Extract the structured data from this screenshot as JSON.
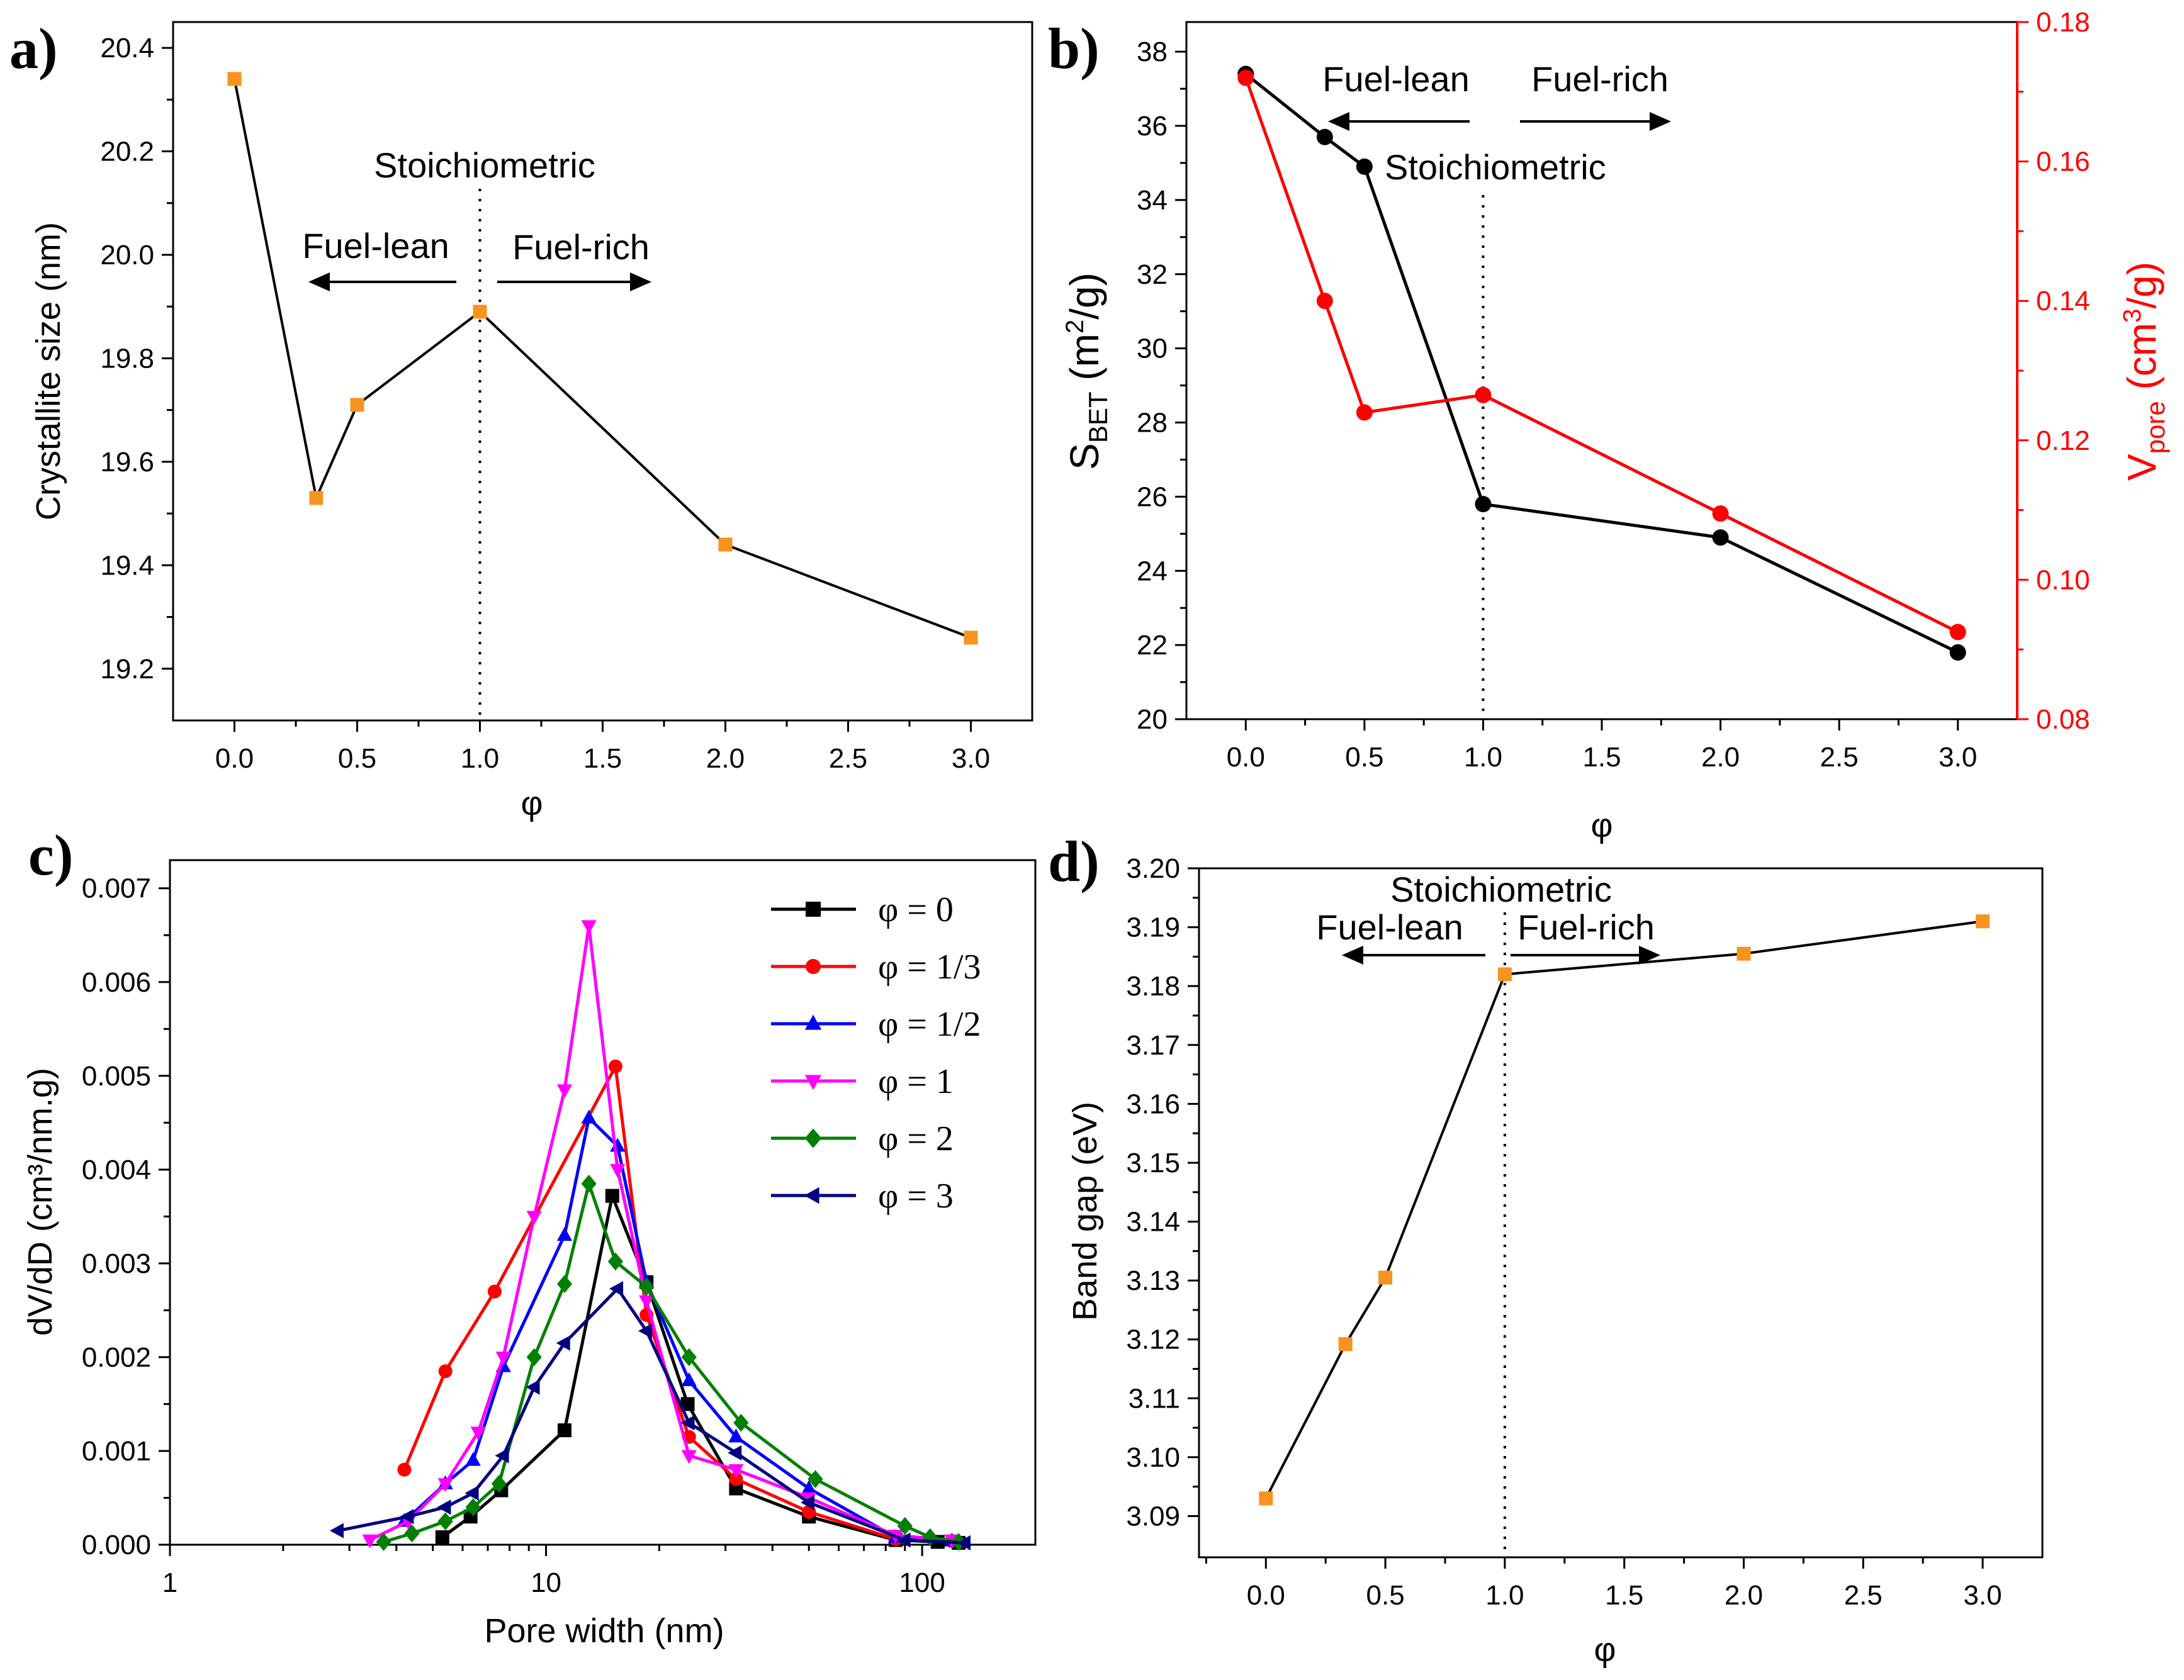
{
  "chart_data": [
    {
      "panel": "a)",
      "type": "line",
      "xlabel": "φ",
      "ylabel": "Crystallite size (nm)",
      "xlim": [
        -0.25,
        3.25
      ],
      "ylim": [
        19.1,
        20.45
      ],
      "xticks": [
        0.0,
        0.5,
        1.0,
        1.5,
        2.0,
        2.5,
        3.0
      ],
      "xtick_labels": [
        "0.0",
        "0.5",
        "1.0",
        "1.5",
        "2.0",
        "2.5",
        "3.0"
      ],
      "yticks": [
        19.2,
        19.4,
        19.6,
        19.8,
        20.0,
        20.2,
        20.4
      ],
      "ytick_labels": [
        "19.2",
        "19.4",
        "19.6",
        "19.8",
        "20.0",
        "20.2",
        "20.4"
      ],
      "series": [
        {
          "name": "Crystallite size",
          "x": [
            0,
            0.333,
            0.5,
            1,
            2,
            3
          ],
          "y": [
            20.34,
            19.53,
            19.71,
            19.89,
            19.44,
            19.26
          ],
          "color": "#000000",
          "marker_color": "#f7931e",
          "marker": "square"
        }
      ],
      "annotations": {
        "stoich": "Stoichiometric",
        "lean": "Fuel-lean",
        "rich": "Fuel-rich"
      },
      "vline_x": 1.0
    },
    {
      "panel": "b)",
      "type": "line",
      "xlabel": "φ",
      "ylabel_main": "S",
      "ylabel_sub": "BET",
      "ylabel_rest": " (m",
      "ylabel_sup": "2",
      "ylabel_end": "/g)",
      "y2label_main": "V",
      "y2label_sub": "pore",
      "y2label_rest": " (cm",
      "y2label_sup": "3",
      "y2label_end": "/g)",
      "xlim": [
        -0.25,
        3.25
      ],
      "ylim": [
        20,
        38.8
      ],
      "y2lim": [
        0.08,
        0.18
      ],
      "xticks": [
        0.0,
        0.5,
        1.0,
        1.5,
        2.0,
        2.5,
        3.0
      ],
      "xtick_labels": [
        "0.0",
        "0.5",
        "1.0",
        "1.5",
        "2.0",
        "2.5",
        "3.0"
      ],
      "yticks": [
        20,
        22,
        24,
        26,
        28,
        30,
        32,
        34,
        36,
        38
      ],
      "ytick_labels": [
        "20",
        "22",
        "24",
        "26",
        "28",
        "30",
        "32",
        "34",
        "36",
        "38"
      ],
      "y2ticks": [
        0.08,
        0.1,
        0.12,
        0.14,
        0.16,
        0.18
      ],
      "y2tick_labels": [
        "0.08",
        "0.10",
        "0.12",
        "0.14",
        "0.16",
        "0.18"
      ],
      "series": [
        {
          "name": "S_BET",
          "x": [
            0,
            0.333,
            0.5,
            1,
            2,
            3
          ],
          "y": [
            37.4,
            35.7,
            34.9,
            25.8,
            24.9,
            21.8
          ],
          "color": "#000000",
          "axis": "left"
        },
        {
          "name": "V_pore",
          "x": [
            0,
            0.333,
            0.5,
            1,
            2,
            3
          ],
          "y": [
            0.172,
            0.14,
            0.124,
            0.1265,
            0.1095,
            0.0925
          ],
          "color": "#ff0000",
          "axis": "right"
        }
      ],
      "annotations": {
        "stoich": "Stoichiometric",
        "lean": "Fuel-lean",
        "rich": "Fuel-rich"
      },
      "vline_x": 1.0,
      "accent_color": "#ff0000"
    },
    {
      "panel": "c)",
      "type": "line",
      "xscale": "log",
      "xlabel": "Pore width (nm)",
      "ylabel": "dV/dD (cm³/nm.g)",
      "xlim": [
        1,
        200
      ],
      "ylim": [
        0,
        0.0073
      ],
      "xticks": [
        1,
        10,
        100
      ],
      "xtick_labels": [
        "1",
        "10",
        "100"
      ],
      "yticks": [
        0,
        0.001,
        0.002,
        0.003,
        0.004,
        0.005,
        0.006,
        0.007
      ],
      "ytick_labels": [
        "0.000",
        "0.001",
        "0.002",
        "0.003",
        "0.004",
        "0.005",
        "0.006",
        "0.007"
      ],
      "legend_position": "top-right",
      "series": [
        {
          "name": "φ = 0",
          "color": "#000000",
          "marker": "square",
          "x": [
            5.3,
            6.3,
            7.6,
            11.2,
            15.0,
            18.5,
            23.8,
            32.0,
            50.0,
            85.0,
            110.0,
            125.0
          ],
          "y": [
            8e-05,
            0.0003,
            0.00058,
            0.00122,
            0.00372,
            0.0028,
            0.0015,
            0.0006,
            0.0003,
            5e-05,
            3e-05,
            2e-05
          ]
        },
        {
          "name": "φ = 1/3",
          "color": "#ff0000",
          "marker": "circle",
          "x": [
            4.2,
            5.4,
            7.3,
            15.3,
            18.5,
            24.0,
            32.0,
            50.0,
            85.0,
            120.0
          ],
          "y": [
            0.0008,
            0.00185,
            0.0027,
            0.0051,
            0.00245,
            0.00115,
            0.0007,
            0.00035,
            6e-05,
            4e-05
          ]
        },
        {
          "name": "φ = 1/2",
          "color": "#0000ff",
          "marker": "triangle-up",
          "x": [
            4.2,
            5.4,
            6.4,
            7.7,
            11.2,
            13.0,
            15.5,
            18.5,
            24.0,
            32.0,
            50.0,
            85.0,
            120.0
          ],
          "y": [
            0.00025,
            0.00065,
            0.0009,
            0.0019,
            0.0033,
            0.00455,
            0.00425,
            0.0028,
            0.00175,
            0.00115,
            0.0006,
            8e-05,
            4e-05
          ]
        },
        {
          "name": "φ = 1",
          "color": "#ff00ff",
          "marker": "triangle-down",
          "x": [
            3.4,
            4.3,
            5.4,
            6.6,
            7.7,
            9.3,
            11.2,
            13.0,
            15.5,
            18.5,
            24.0,
            32.0,
            50.0,
            85.0,
            120.0
          ],
          "y": [
            5e-05,
            0.00025,
            0.00065,
            0.0012,
            0.002,
            0.0035,
            0.00485,
            0.0066,
            0.004,
            0.0026,
            0.00095,
            0.0008,
            0.0005,
            0.0001,
            5e-05
          ]
        },
        {
          "name": "φ = 2",
          "color": "#008000",
          "marker": "diamond",
          "x": [
            3.7,
            4.4,
            5.4,
            6.4,
            7.5,
            9.3,
            11.2,
            13.0,
            15.3,
            18.5,
            24.0,
            33.0,
            52.0,
            90.0,
            105.0,
            125.0
          ],
          "y": [
            3e-05,
            0.00012,
            0.00025,
            0.0004,
            0.00065,
            0.002,
            0.00278,
            0.00385,
            0.00302,
            0.00275,
            0.002,
            0.0013,
            0.0007,
            0.0002,
            8e-05,
            3e-05
          ]
        },
        {
          "name": "φ = 3",
          "color": "#000080",
          "marker": "triangle-left",
          "x": [
            2.8,
            4.3,
            5.4,
            6.4,
            7.7,
            9.3,
            11.2,
            15.5,
            18.5,
            24.0,
            32.0,
            50.0,
            90.0,
            130.0
          ],
          "y": [
            0.00015,
            0.0003,
            0.0004,
            0.00055,
            0.00095,
            0.00168,
            0.00215,
            0.00273,
            0.00228,
            0.0013,
            0.00098,
            0.00045,
            5e-05,
            2e-05
          ]
        }
      ]
    },
    {
      "panel": "d)",
      "type": "line",
      "xlabel": "φ",
      "ylabel": "Band gap (eV)",
      "xlim": [
        -0.28,
        3.25
      ],
      "ylim": [
        3.083,
        3.2
      ],
      "xticks": [
        0.0,
        0.5,
        1.0,
        1.5,
        2.0,
        2.5,
        3.0
      ],
      "xtick_labels": [
        "0.0",
        "0.5",
        "1.0",
        "1.5",
        "2.0",
        "2.5",
        "3.0"
      ],
      "yticks": [
        3.09,
        3.1,
        3.11,
        3.12,
        3.13,
        3.14,
        3.15,
        3.16,
        3.17,
        3.18,
        3.19,
        3.2
      ],
      "ytick_labels": [
        "3.09",
        "3.10",
        "3.11",
        "3.12",
        "3.13",
        "3.14",
        "3.15",
        "3.16",
        "3.17",
        "3.18",
        "3.19",
        "3.20"
      ],
      "series": [
        {
          "name": "Band gap",
          "x": [
            0,
            0.333,
            0.5,
            1,
            2,
            3
          ],
          "y": [
            3.093,
            3.1192,
            3.1305,
            3.182,
            3.1855,
            3.191
          ],
          "color": "#000000",
          "marker_color": "#f7931e",
          "marker": "square"
        }
      ],
      "annotations": {
        "stoich": "Stoichiometric",
        "lean": "Fuel-lean",
        "rich": "Fuel-rich"
      },
      "vline_x": 1.0
    }
  ]
}
